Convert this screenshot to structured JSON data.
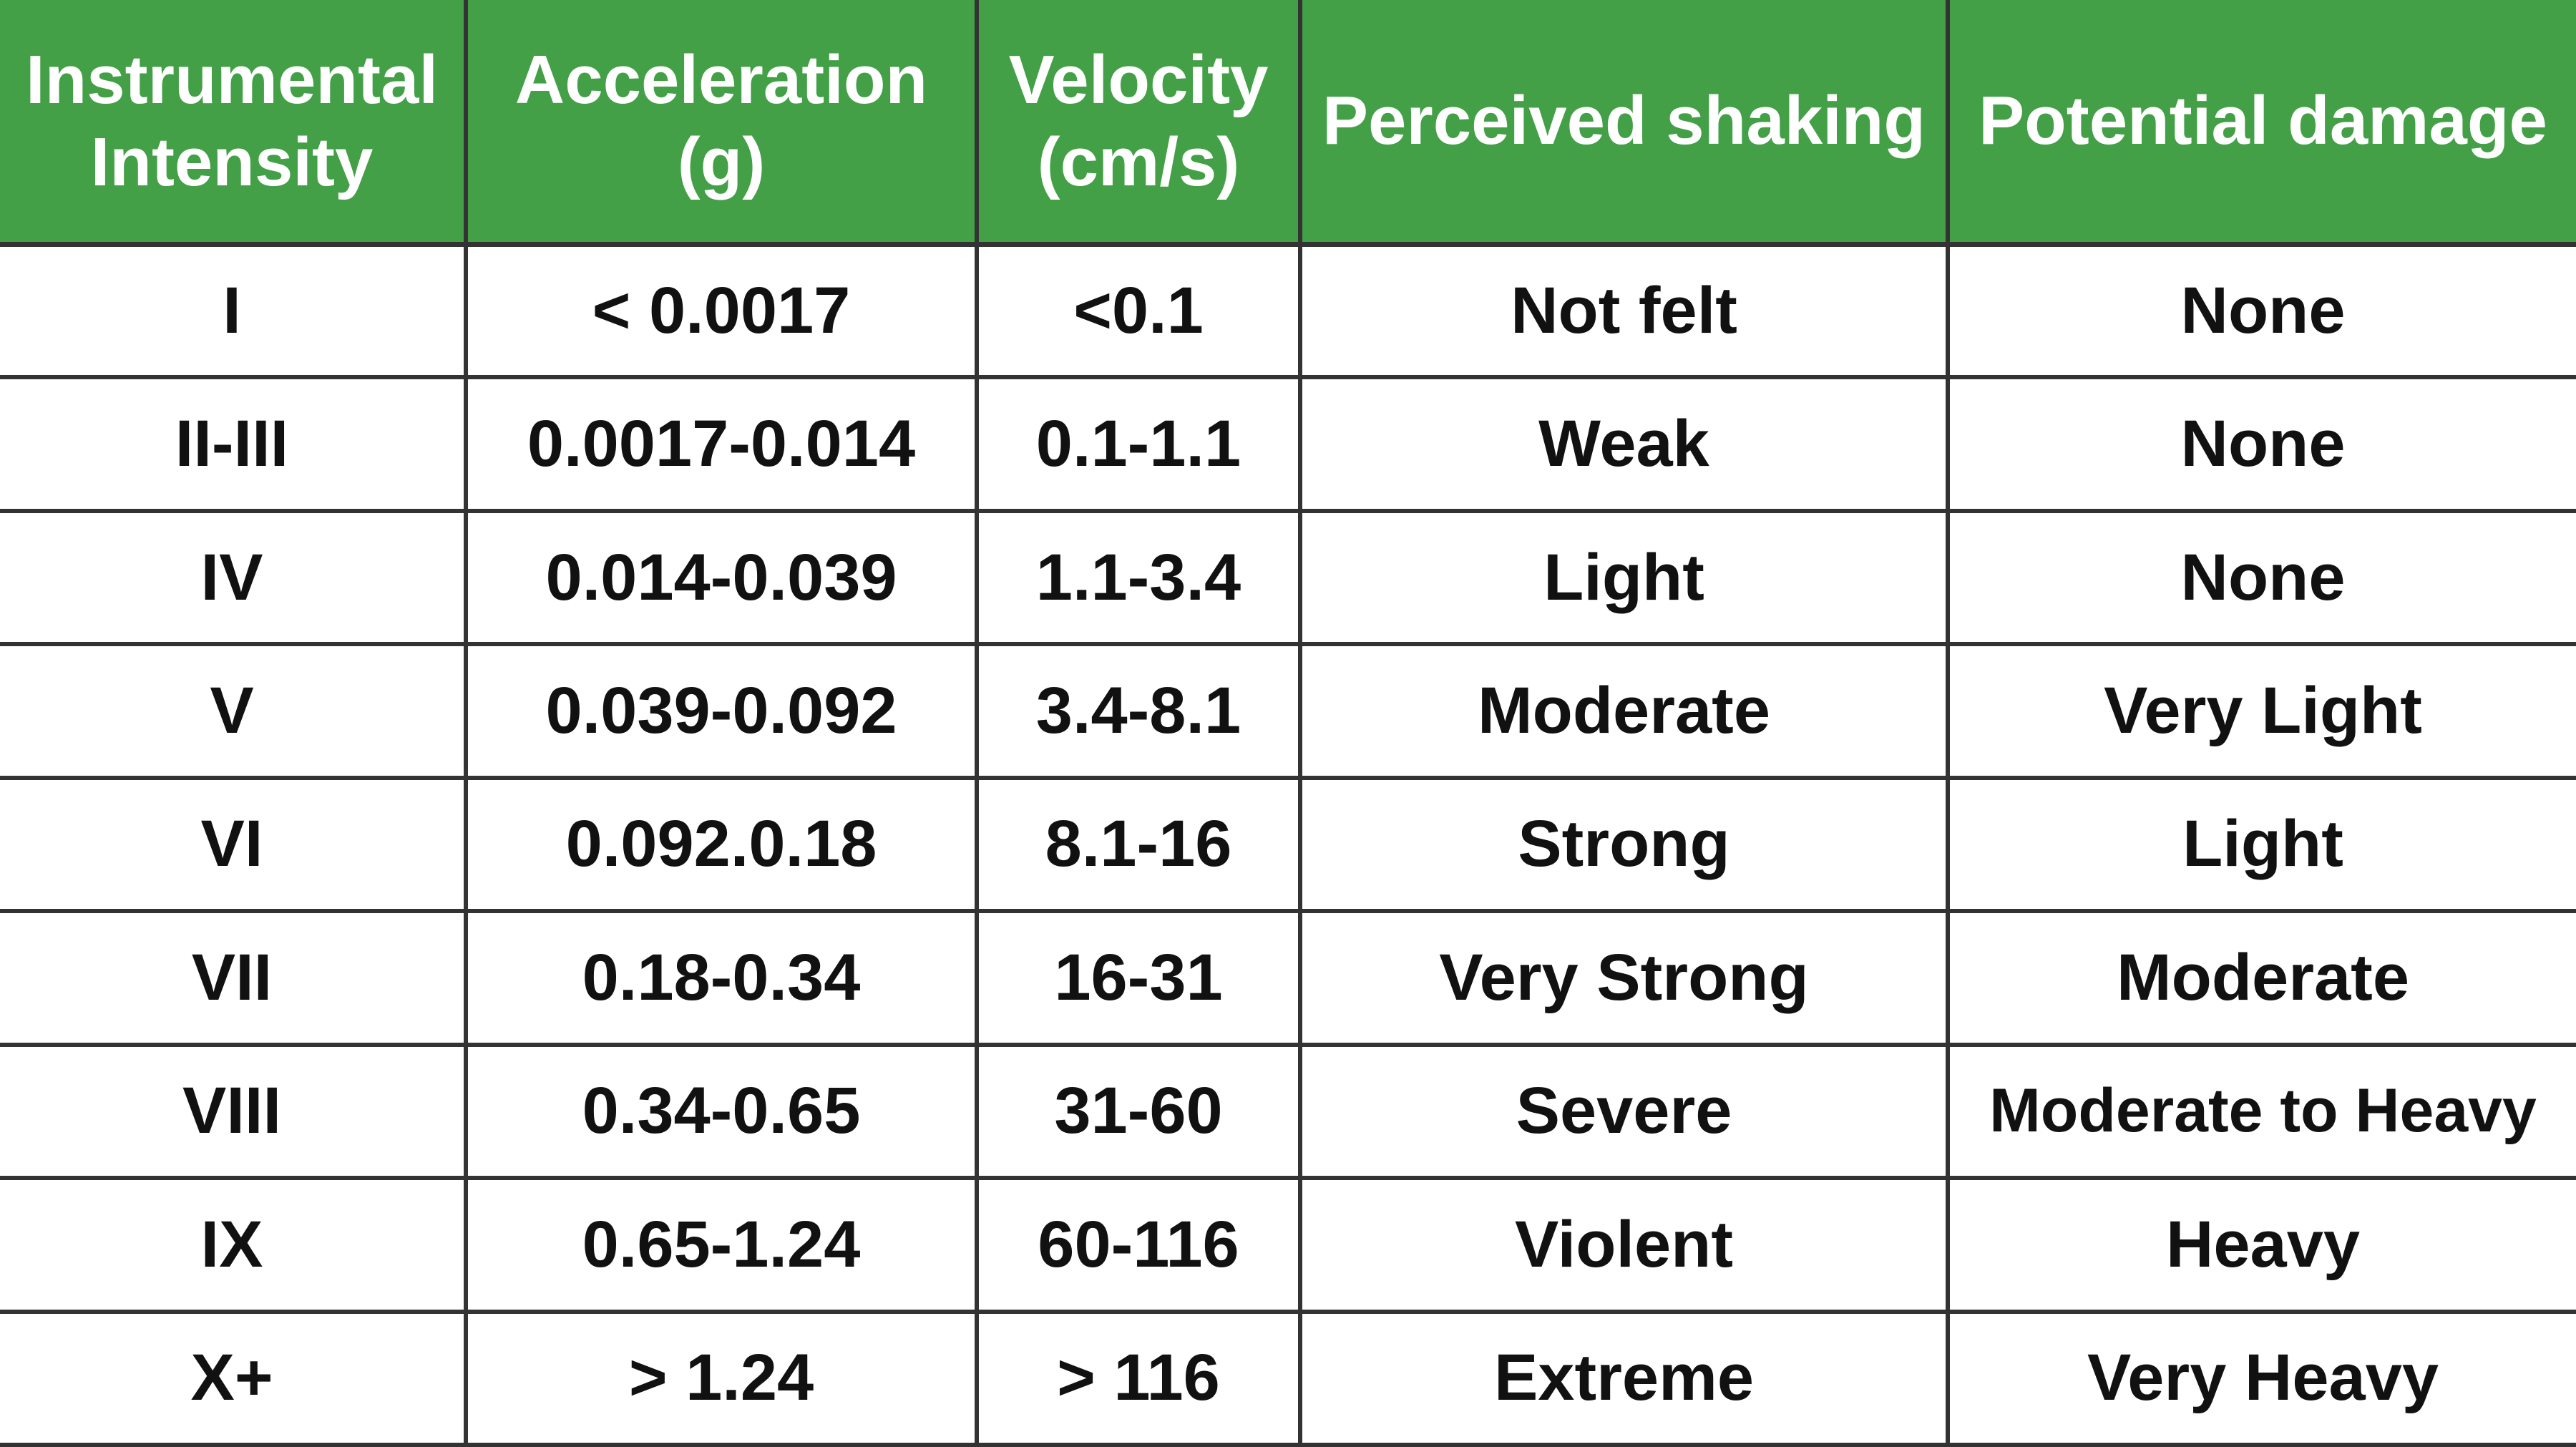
{
  "chart_data": {
    "type": "table",
    "columns": [
      "Instrumental\nIntensity",
      "Acceleration\n(g)",
      "Velocity\n(cm/s)",
      "Perceived shaking",
      "Potential damage"
    ],
    "rows": [
      [
        "I",
        "< 0.0017",
        "<0.1",
        "Not felt",
        "None"
      ],
      [
        "II-III",
        "0.0017-0.014",
        "0.1-1.1",
        "Weak",
        "None"
      ],
      [
        "IV",
        "0.014-0.039",
        "1.1-3.4",
        "Light",
        "None"
      ],
      [
        "V",
        "0.039-0.092",
        "3.4-8.1",
        "Moderate",
        "Very Light"
      ],
      [
        "VI",
        "0.092.0.18",
        "8.1-16",
        "Strong",
        "Light"
      ],
      [
        "VII",
        "0.18-0.34",
        "16-31",
        "Very Strong",
        "Moderate"
      ],
      [
        "VIII",
        "0.34-0.65",
        "31-60",
        "Severe",
        "Moderate to Heavy"
      ],
      [
        "IX",
        "0.65-1.24",
        "60-116",
        "Violent",
        "Heavy"
      ],
      [
        "X+",
        "> 1.24",
        "> 116",
        "Extreme",
        "Very Heavy"
      ]
    ],
    "colors": {
      "header_background": "#43a047",
      "header_text": "#ffffff",
      "grid_lines": "#333333",
      "cell_background": "#ffffff",
      "cell_text": "#111111"
    }
  }
}
